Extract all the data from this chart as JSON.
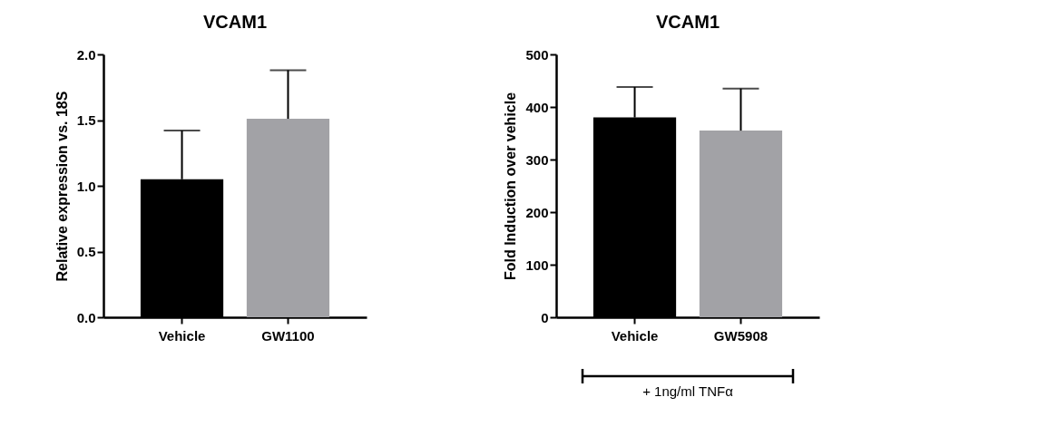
{
  "chart_data": [
    {
      "type": "bar",
      "title": "VCAM1",
      "ylabel": "Relative expression vs. 18S",
      "categories": [
        "Vehicle",
        "GW1100"
      ],
      "values": [
        1.05,
        1.51
      ],
      "colors": [
        "#000000",
        "#a2a2a6"
      ],
      "errors": [
        [
          1.05,
          1.42
        ],
        [
          1.51,
          1.88
        ]
      ],
      "ylim": [
        0,
        2
      ],
      "yticks": [
        {
          "value": 0,
          "label": "0.0"
        },
        0.5,
        {
          "value": 1,
          "label": "1.0"
        },
        1.5,
        {
          "value": 2,
          "label": "2.0"
        }
      ],
      "grid": false
    },
    {
      "type": "bar",
      "title": "VCAM1",
      "ylabel": "Fold Induction over vehicle",
      "categories": [
        "Vehicle",
        "GW5908"
      ],
      "values": [
        380,
        355
      ],
      "colors": [
        "#000000",
        "#a2a2a6"
      ],
      "errors": [
        [
          380,
          438
        ],
        [
          355,
          435
        ]
      ],
      "ylim": [
        0,
        500
      ],
      "yticks": [
        0,
        100,
        200,
        300,
        400,
        500
      ],
      "grid": false,
      "annotations": [
        "+ 1ng/ml TNFα"
      ]
    }
  ]
}
